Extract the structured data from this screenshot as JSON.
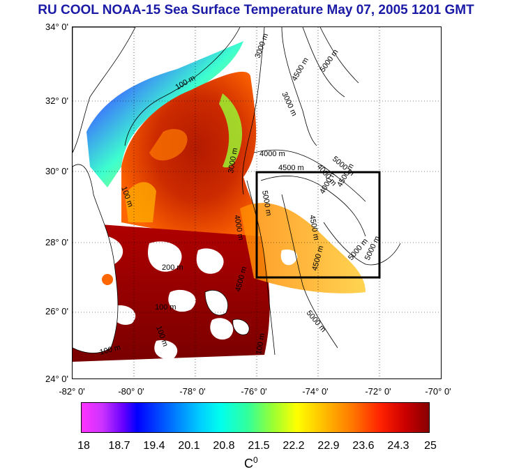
{
  "title": "RU COOL  NOAA-15 Sea Surface Temperature May 07, 2005 1201 GMT",
  "map": {
    "lat_labels": [
      "34° 0'",
      "32° 0'",
      "30° 0'",
      "28° 0'",
      "26° 0'",
      "24° 0'"
    ],
    "lon_labels": [
      "-82° 0'",
      "-80° 0'",
      "-78° 0'",
      "-76° 0'",
      "-74° 0'",
      "-72° 0'",
      "-70° 0'"
    ],
    "lat_range": [
      24,
      34
    ],
    "lon_range": [
      -82,
      -70
    ],
    "study_box": {
      "lon": [
        -76,
        -72
      ],
      "lat": [
        27,
        30
      ]
    },
    "contour_labels": [
      "3000 m",
      "4500 m",
      "5000 m",
      "100 m",
      "3000 m",
      "4000 m",
      "3000 m",
      "4000 m",
      "4500 m",
      "5000 m",
      "4000 m",
      "4500 m",
      "5000 m",
      "100 m",
      "4500 m",
      "4000 m",
      "4500 m",
      "5000 m",
      "5000 m",
      "200 m",
      "4500 m",
      "100 m",
      "5000 m",
      "100 m",
      "100 m",
      "100 m"
    ]
  },
  "colorbar": {
    "labels": [
      "18",
      "18.7",
      "19.4",
      "20.1",
      "20.8",
      "21.5",
      "22.2",
      "22.9",
      "23.6",
      "24.3",
      "25"
    ],
    "unit_base": "C",
    "unit_sup": "0",
    "range": [
      18,
      25
    ]
  },
  "colors": {
    "title": "#1a1aa6",
    "study_box": "#000000"
  }
}
